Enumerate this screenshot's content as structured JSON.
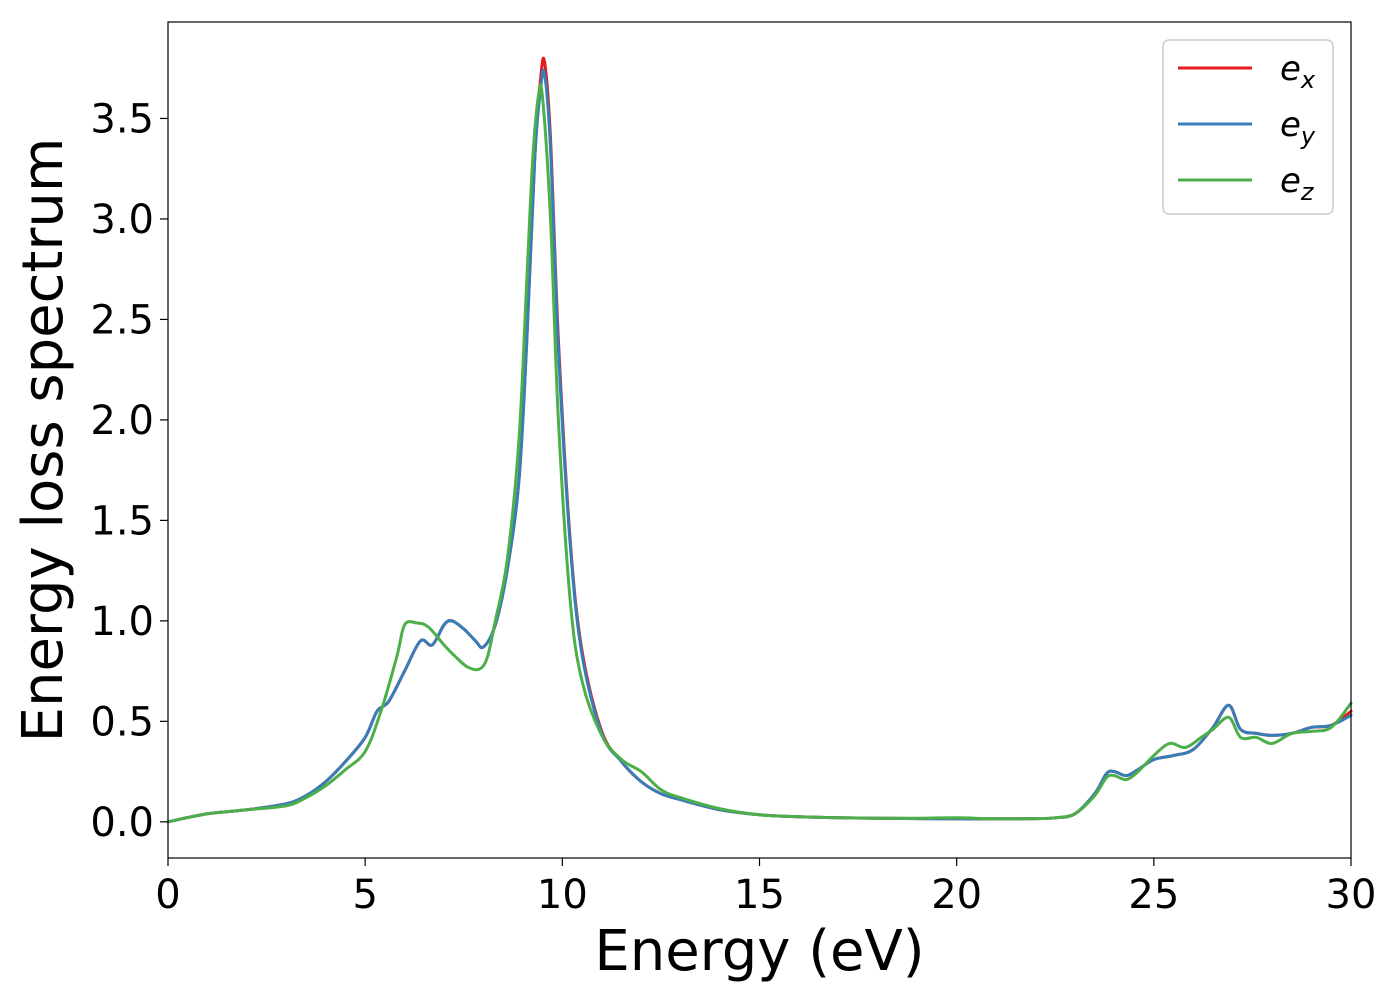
{
  "chart_data": {
    "type": "line",
    "title": "",
    "xlabel": "Energy (eV)",
    "ylabel": "Energy loss spectrum",
    "xlim": [
      0,
      30
    ],
    "ylim": [
      -0.18,
      3.98
    ],
    "xticks": [
      0,
      5,
      10,
      15,
      20,
      25,
      30
    ],
    "xtick_labels": [
      "0",
      "5",
      "10",
      "15",
      "20",
      "25",
      "30"
    ],
    "yticks": [
      0.0,
      0.5,
      1.0,
      1.5,
      2.0,
      2.5,
      3.0,
      3.5
    ],
    "ytick_labels": [
      "0.0",
      "0.5",
      "1.0",
      "1.5",
      "2.0",
      "2.5",
      "3.0",
      "3.5"
    ],
    "grid": false,
    "legend": {
      "placement": "top-right"
    },
    "series": [
      {
        "name": "e",
        "sub": "x",
        "color": "#e41a1c",
        "x": [
          0,
          1,
          2,
          3,
          3.5,
          4,
          4.5,
          5,
          5.3,
          5.6,
          6,
          6.4,
          6.7,
          7,
          7.2,
          7.5,
          7.8,
          8,
          8.3,
          8.6,
          8.9,
          9.1,
          9.3,
          9.45,
          9.55,
          9.7,
          9.9,
          10.2,
          10.5,
          11,
          11.5,
          12,
          12.5,
          13,
          14,
          15,
          16,
          17,
          18,
          19,
          20,
          21,
          22,
          22.5,
          23,
          23.5,
          23.8,
          24,
          24.3,
          24.6,
          25,
          25.5,
          26,
          26.5,
          26.9,
          27.2,
          27.6,
          28,
          28.5,
          29,
          29.5,
          30
        ],
        "y": [
          0,
          0.04,
          0.06,
          0.09,
          0.13,
          0.2,
          0.3,
          0.42,
          0.55,
          0.6,
          0.75,
          0.9,
          0.88,
          0.98,
          1.0,
          0.96,
          0.9,
          0.87,
          0.98,
          1.25,
          1.7,
          2.4,
          3.3,
          3.7,
          3.78,
          3.4,
          2.4,
          1.4,
          0.85,
          0.45,
          0.3,
          0.2,
          0.14,
          0.11,
          0.06,
          0.035,
          0.025,
          0.02,
          0.018,
          0.016,
          0.015,
          0.015,
          0.016,
          0.02,
          0.04,
          0.14,
          0.24,
          0.25,
          0.23,
          0.26,
          0.31,
          0.33,
          0.36,
          0.47,
          0.58,
          0.46,
          0.44,
          0.43,
          0.44,
          0.47,
          0.48,
          0.55
        ]
      },
      {
        "name": "e",
        "sub": "y",
        "color": "#377eb8",
        "x": [
          0,
          1,
          2,
          3,
          3.5,
          4,
          4.5,
          5,
          5.3,
          5.6,
          6,
          6.4,
          6.7,
          7,
          7.2,
          7.5,
          7.8,
          8,
          8.3,
          8.6,
          8.9,
          9.1,
          9.3,
          9.45,
          9.55,
          9.7,
          9.9,
          10.2,
          10.5,
          11,
          11.5,
          12,
          12.5,
          13,
          14,
          15,
          16,
          17,
          18,
          19,
          20,
          21,
          22,
          22.5,
          23,
          23.5,
          23.8,
          24,
          24.3,
          24.6,
          25,
          25.5,
          26,
          26.5,
          26.9,
          27.2,
          27.6,
          28,
          28.5,
          29,
          29.5,
          30
        ],
        "y": [
          0,
          0.04,
          0.06,
          0.09,
          0.13,
          0.2,
          0.3,
          0.42,
          0.55,
          0.6,
          0.75,
          0.9,
          0.88,
          0.98,
          1.0,
          0.96,
          0.9,
          0.87,
          0.98,
          1.25,
          1.7,
          2.4,
          3.3,
          3.65,
          3.72,
          3.35,
          2.35,
          1.38,
          0.83,
          0.44,
          0.3,
          0.2,
          0.14,
          0.11,
          0.06,
          0.035,
          0.025,
          0.02,
          0.018,
          0.016,
          0.015,
          0.015,
          0.016,
          0.02,
          0.04,
          0.14,
          0.24,
          0.25,
          0.23,
          0.26,
          0.31,
          0.33,
          0.36,
          0.47,
          0.58,
          0.46,
          0.44,
          0.43,
          0.44,
          0.47,
          0.48,
          0.53
        ]
      },
      {
        "name": "e",
        "sub": "z",
        "color": "#4daf4a",
        "x": [
          0,
          1,
          2,
          3,
          3.5,
          4,
          4.5,
          5,
          5.4,
          5.8,
          6,
          6.3,
          6.6,
          7,
          7.3,
          7.6,
          7.9,
          8.1,
          8.3,
          8.6,
          8.9,
          9.1,
          9.25,
          9.4,
          9.5,
          9.7,
          9.9,
          10.2,
          10.5,
          11,
          11.5,
          12,
          12.5,
          13,
          14,
          15,
          16,
          17,
          18,
          19,
          20,
          21,
          22,
          22.5,
          23,
          23.5,
          23.8,
          24,
          24.3,
          24.6,
          25,
          25.4,
          25.8,
          26.2,
          26.5,
          26.9,
          27.2,
          27.6,
          28,
          28.5,
          29,
          29.5,
          30
        ],
        "y": [
          0,
          0.04,
          0.06,
          0.08,
          0.12,
          0.18,
          0.26,
          0.35,
          0.55,
          0.82,
          0.98,
          0.99,
          0.97,
          0.88,
          0.82,
          0.77,
          0.76,
          0.82,
          1.0,
          1.3,
          1.9,
          2.7,
          3.3,
          3.62,
          3.6,
          3.0,
          2.0,
          1.1,
          0.7,
          0.43,
          0.31,
          0.25,
          0.16,
          0.12,
          0.065,
          0.035,
          0.025,
          0.02,
          0.018,
          0.018,
          0.02,
          0.015,
          0.016,
          0.02,
          0.04,
          0.13,
          0.22,
          0.23,
          0.21,
          0.25,
          0.33,
          0.39,
          0.37,
          0.42,
          0.46,
          0.52,
          0.42,
          0.42,
          0.39,
          0.44,
          0.45,
          0.47,
          0.59
        ]
      }
    ]
  }
}
